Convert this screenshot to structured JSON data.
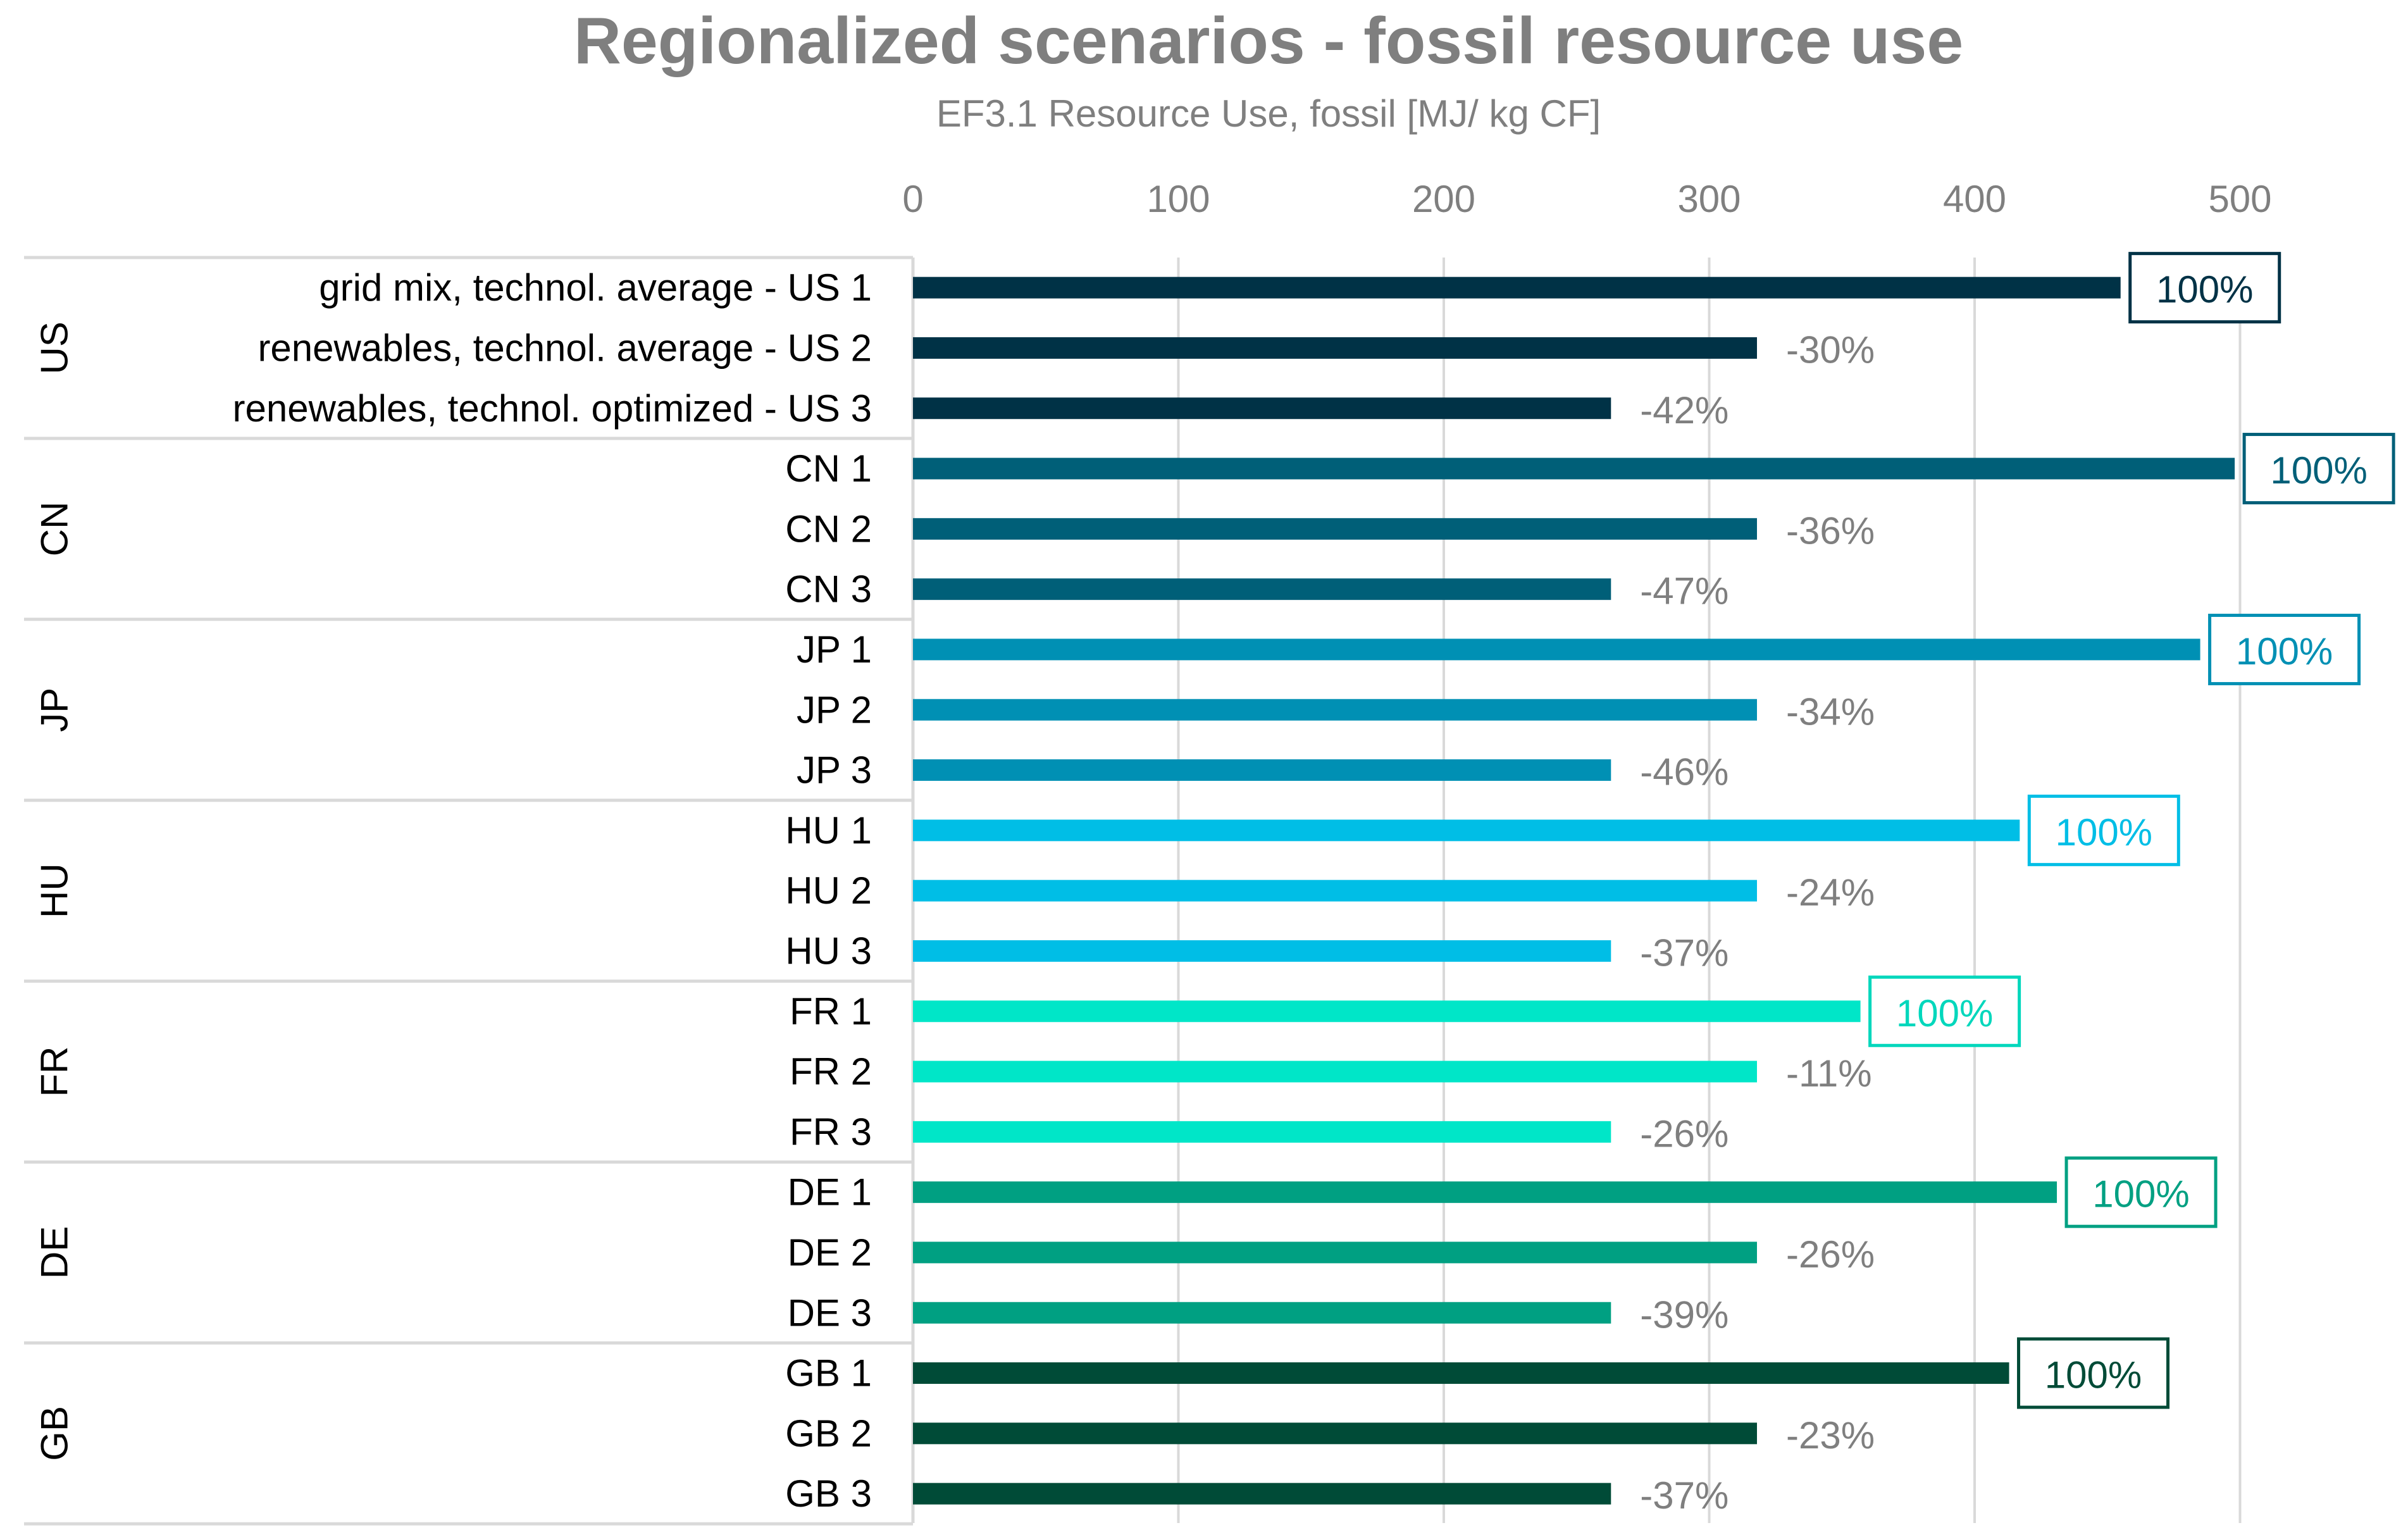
{
  "chart_data": {
    "type": "bar",
    "orientation": "horizontal",
    "title": "Regionalized scenarios - fossil resource use",
    "subtitle": "EF3.1 Resource Use, fossil [MJ/ kg CF]",
    "xlim": [
      0,
      500
    ],
    "ticks": [
      0,
      100,
      200,
      300,
      400,
      500
    ],
    "tick_labels": [
      "0",
      "100",
      "200",
      "300",
      "400",
      "500"
    ],
    "grid": true,
    "groups": [
      {
        "name": "US",
        "color": "#003246",
        "label_color": "#003246",
        "bars": [
          {
            "label": "grid mix, technol. average  -  US 1",
            "value": 455,
            "change": "100%",
            "baseline": true
          },
          {
            "label": "renewables, technol. average  -  US 2",
            "value": 318,
            "change": "-30%",
            "baseline": false
          },
          {
            "label": "renewables, technol. optimized  -  US 3",
            "value": 263,
            "change": "-42%",
            "baseline": false
          }
        ]
      },
      {
        "name": "CN",
        "color": "#005f78",
        "label_color": "#005f78",
        "bars": [
          {
            "label": "CN 1",
            "value": 498,
            "change": "100%",
            "baseline": true
          },
          {
            "label": "CN 2",
            "value": 318,
            "change": "-36%",
            "baseline": false
          },
          {
            "label": "CN 3",
            "value": 263,
            "change": "-47%",
            "baseline": false
          }
        ]
      },
      {
        "name": "JP",
        "color": "#0090b4",
        "label_color": "#0090b4",
        "bars": [
          {
            "label": "JP 1",
            "value": 485,
            "change": "100%",
            "baseline": true
          },
          {
            "label": "JP 2",
            "value": 318,
            "change": "-34%",
            "baseline": false
          },
          {
            "label": "JP 3",
            "value": 263,
            "change": "-46%",
            "baseline": false
          }
        ]
      },
      {
        "name": "HU",
        "color": "#00bee6",
        "label_color": "#00bee6",
        "bars": [
          {
            "label": "HU 1",
            "value": 417,
            "change": "100%",
            "baseline": true
          },
          {
            "label": "HU 2",
            "value": 318,
            "change": "-24%",
            "baseline": false
          },
          {
            "label": "HU 3",
            "value": 263,
            "change": "-37%",
            "baseline": false
          }
        ]
      },
      {
        "name": "FR",
        "color": "#00e6c8",
        "label_color": "#00d7bc",
        "bars": [
          {
            "label": "FR 1",
            "value": 357,
            "change": "100%",
            "baseline": true
          },
          {
            "label": "FR 2",
            "value": 318,
            "change": "-11%",
            "baseline": false
          },
          {
            "label": "FR 3",
            "value": 263,
            "change": "-26%",
            "baseline": false
          }
        ]
      },
      {
        "name": "DE",
        "color": "#00a082",
        "label_color": "#00a082",
        "bars": [
          {
            "label": "DE 1",
            "value": 431,
            "change": "100%",
            "baseline": true
          },
          {
            "label": "DE 2",
            "value": 318,
            "change": "-26%",
            "baseline": false
          },
          {
            "label": "DE 3",
            "value": 263,
            "change": "-39%",
            "baseline": false
          }
        ]
      },
      {
        "name": "GB",
        "color": "#004b37",
        "label_color": "#004b37",
        "bars": [
          {
            "label": "GB 1",
            "value": 413,
            "change": "100%",
            "baseline": true
          },
          {
            "label": "GB 2",
            "value": 318,
            "change": "-23%",
            "baseline": false
          },
          {
            "label": "GB 3",
            "value": 263,
            "change": "-37%",
            "baseline": false
          }
        ]
      }
    ]
  }
}
